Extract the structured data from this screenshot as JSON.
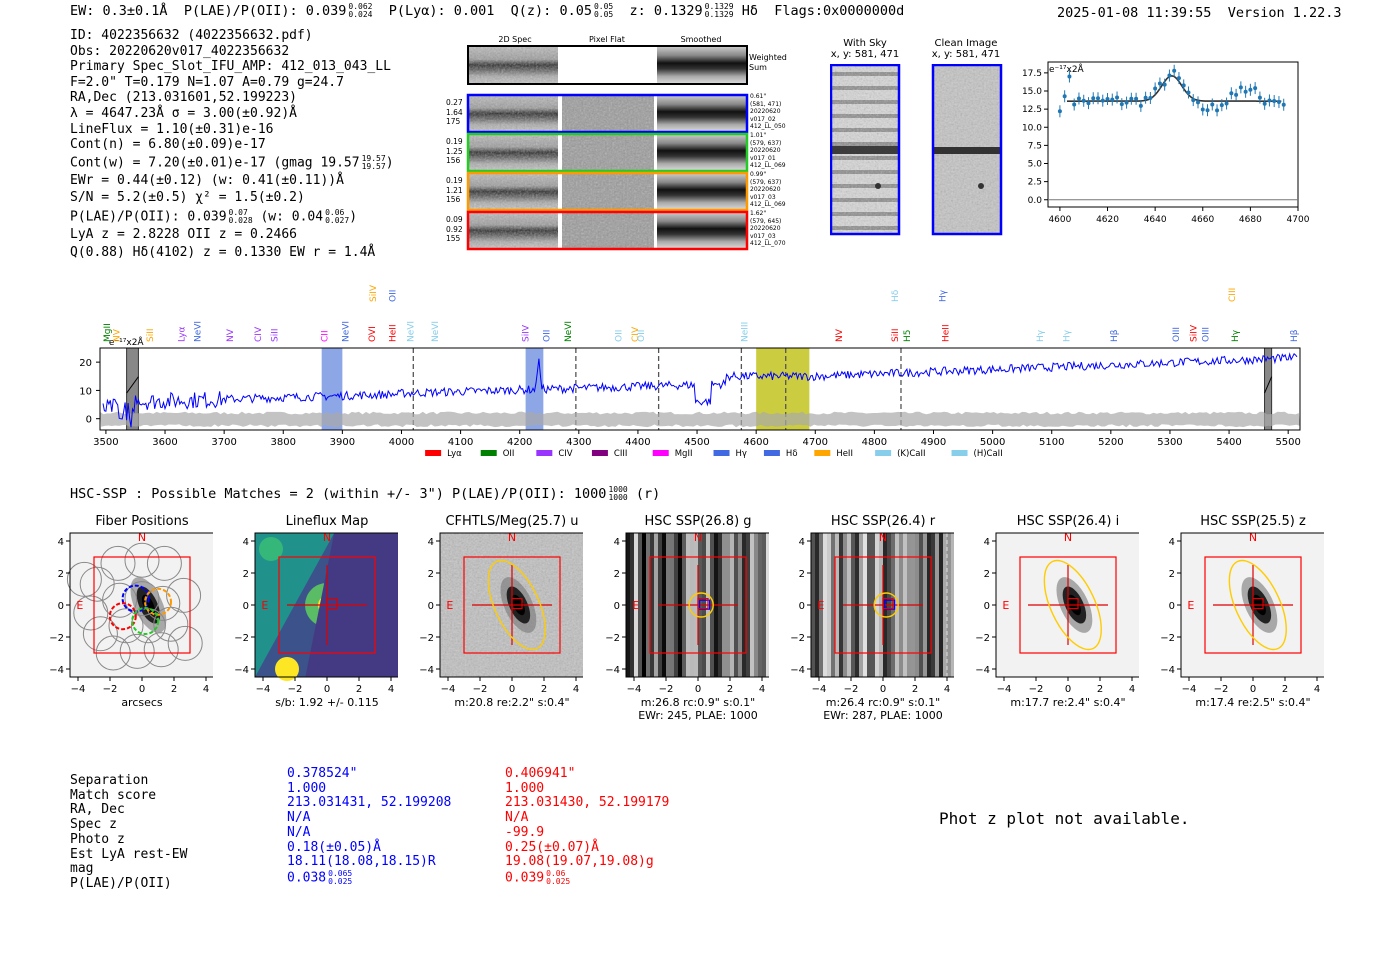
{
  "header": {
    "ew": "EW: 0.3±0.1Å",
    "plae_label": "P(LAE)/P(OII): 0.039",
    "plae_hi": "0.062",
    "plae_lo": "0.024",
    "plya": "P(Lyα): 0.001",
    "qz_label": "Q(z): 0.05",
    "qz_hi": "0.05",
    "qz_lo": "0.05",
    "z_label": "z: 0.1329",
    "z_hi": "0.1329",
    "z_lo": "0.1329",
    "line": "Hδ",
    "flags": "Flags:0x0000000d",
    "datetime": "2025-01-08 11:39:55",
    "version": "Version 1.22.3"
  },
  "info": {
    "id": "ID: 4022356632 (4022356632.pdf)",
    "obs": "Obs: 20220620v017_4022356632",
    "primary": "Primary Spec_Slot_IFU_AMP: 412_013_043_LL",
    "fit": "F=2.0\"  T=0.179  N=1.07  A=0.79  g=24.7",
    "radec": "RA,Dec (213.031601,52.199223)",
    "lambda": "λ = 4647.23Å  σ = 3.00(±0.92)Å",
    "lineflux": "LineFlux = 1.10(±0.31)e-16",
    "contn": "Cont(n) = 6.80(±0.09)e-17",
    "contw": "Cont(w) = 7.20(±0.01)e-17 (gmag 19.57",
    "contw_hi": "19.57",
    "contw_lo": "19.57",
    "ewr": "EWr = 0.44(±0.12) (w: 0.41(±0.11))Å",
    "sn": "S/N = 5.2(±0.5)  χ² = 1.5(±0.2)",
    "plae": "P(LAE)/P(OII): 0.039",
    "plae_hi": "0.07",
    "plae_lo": "0.028",
    "plae_w": "(w: 0.04",
    "plae_w_hi": "0.06",
    "plae_w_lo": "0.027",
    "lya": "LyA z = 2.8228  OII z = 0.2466",
    "q": "Q(0.88) Hδ(4102) z = 0.1330  EW r = 1.4Å"
  },
  "cutouts": {
    "headers": [
      "2D Spec",
      "Pixel Flat",
      "Smoothed"
    ],
    "weighted": "Weighted Sum",
    "rows": [
      {
        "left": [
          "0.27",
          "1.64",
          "175"
        ],
        "right": [
          "0.61\"",
          "(581, 471)",
          "20220620",
          "v017_02",
          "412_LL_050"
        ],
        "color": "#0000ff"
      },
      {
        "left": [
          "0.19",
          "1.25",
          "156"
        ],
        "right": [
          "1.01\"",
          "(579, 637)",
          "20220620",
          "v017_01",
          "412_LL_069"
        ],
        "color": "#22cc22"
      },
      {
        "left": [
          "0.19",
          "1.21",
          "156"
        ],
        "right": [
          "0.99\"",
          "(579, 637)",
          "20220620",
          "v017_03",
          "412_LL_069"
        ],
        "color": "#ff9900"
      },
      {
        "left": [
          "0.09",
          "0.92",
          "155"
        ],
        "right": [
          "1.62\"",
          "(579, 645)",
          "20220620",
          "v017_03",
          "412_LL_070"
        ],
        "color": "#ff0000"
      }
    ]
  },
  "sky": {
    "with_title": "With Sky",
    "with_coords": "x, y: 581, 471",
    "clean_title": "Clean Image",
    "clean_coords": "x, y: 581, 471"
  },
  "zoom_chart": {
    "unit": "e⁻¹⁷x2Å",
    "type": "scatter",
    "xlim": [
      4595,
      4700
    ],
    "ylim": [
      -1,
      19
    ],
    "xticks": [
      "4600",
      "4620",
      "4640",
      "4660",
      "4680",
      "4700"
    ],
    "yticks": [
      "0.0",
      "2.5",
      "5.0",
      "7.5",
      "10.0",
      "12.5",
      "15.0",
      "17.5"
    ]
  },
  "chart_data": {
    "type": "line",
    "unit": "e⁻¹⁷x2Å",
    "xlim": [
      3490,
      5520
    ],
    "ylim": [
      -4,
      25
    ],
    "xticks": [
      "3500",
      "3600",
      "3700",
      "3800",
      "3900",
      "4000",
      "4100",
      "4200",
      "4300",
      "4400",
      "4500",
      "4600",
      "4700",
      "4800",
      "4900",
      "5000",
      "5100",
      "5200",
      "5300",
      "5400",
      "5500"
    ],
    "yticks": [
      "0",
      "10",
      "20"
    ],
    "legend": [
      {
        "label": "Lyα",
        "color": "#ff0000"
      },
      {
        "label": "OII",
        "color": "#008000"
      },
      {
        "label": "CIV",
        "color": "#9933ff"
      },
      {
        "label": "CIII",
        "color": "#800080"
      },
      {
        "label": "MgII",
        "color": "#ff00ff"
      },
      {
        "label": "Hγ",
        "color": "#4169e1"
      },
      {
        "label": "Hδ",
        "color": "#4169e1"
      },
      {
        "label": "HeII",
        "color": "#ffa500"
      },
      {
        "label": "(K)CaII",
        "color": "#87ceeb"
      },
      {
        "label": "(H)CaII",
        "color": "#87ceeb"
      }
    ],
    "line_labels": [
      {
        "name": "MgII",
        "x": 3502,
        "row": 1,
        "color": "#008000"
      },
      {
        "name": "NV",
        "x": 3518,
        "row": 1,
        "color": "#ffa500"
      },
      {
        "name": "SiII",
        "x": 3575,
        "row": 1,
        "color": "#ffa500"
      },
      {
        "name": "Lyα",
        "x": 3628,
        "row": 1,
        "color": "#9933ff"
      },
      {
        "name": "NeVI",
        "x": 3655,
        "row": 1,
        "color": "#4169e1"
      },
      {
        "name": "NV",
        "x": 3710,
        "row": 1,
        "color": "#9933ff"
      },
      {
        "name": "CIV",
        "x": 3757,
        "row": 1,
        "color": "#9933ff"
      },
      {
        "name": "SiII",
        "x": 3785,
        "row": 1,
        "color": "#9933ff"
      },
      {
        "name": "CII",
        "x": 3870,
        "row": 1,
        "color": "#ff00ff"
      },
      {
        "name": "NeVI",
        "x": 3905,
        "row": 1,
        "color": "#4169e1"
      },
      {
        "name": "OVI",
        "x": 3950,
        "row": 1,
        "color": "#ff0000"
      },
      {
        "name": "SiIV",
        "x": 3952,
        "row": 0,
        "color": "#ffa500"
      },
      {
        "name": "HeII",
        "x": 3985,
        "row": 1,
        "color": "#ff0000"
      },
      {
        "name": "OII",
        "x": 3985,
        "row": 0,
        "color": "#4169e1"
      },
      {
        "name": "NeVI",
        "x": 4015,
        "row": 1,
        "color": "#87ceeb"
      },
      {
        "name": "NeVI",
        "x": 4057,
        "row": 1,
        "color": "#87ceeb"
      },
      {
        "name": "SiIV",
        "x": 4210,
        "row": 1,
        "color": "#9933ff"
      },
      {
        "name": "OII",
        "x": 4245,
        "row": 1,
        "color": "#4169e1"
      },
      {
        "name": "NeVI",
        "x": 4282,
        "row": 1,
        "color": "#008000"
      },
      {
        "name": "OII",
        "x": 4367,
        "row": 1,
        "color": "#87ceeb"
      },
      {
        "name": "CIV",
        "x": 4395,
        "row": 1,
        "color": "#ffa500"
      },
      {
        "name": "OII",
        "x": 4405,
        "row": 1,
        "color": "#87ceeb"
      },
      {
        "name": "NeIII",
        "x": 4580,
        "row": 1,
        "color": "#87ceeb"
      },
      {
        "name": "NV",
        "x": 4740,
        "row": 1,
        "color": "#ff0000"
      },
      {
        "name": "SiII",
        "x": 4835,
        "row": 1,
        "color": "#ff0000"
      },
      {
        "name": "Hδ",
        "x": 4835,
        "row": 0,
        "color": "#87ceeb"
      },
      {
        "name": "H5",
        "x": 4855,
        "row": 1,
        "color": "#008000"
      },
      {
        "name": "Hγ",
        "x": 4915,
        "row": 0,
        "color": "#4169e1"
      },
      {
        "name": "HeII",
        "x": 4920,
        "row": 1,
        "color": "#ff0000"
      },
      {
        "name": "Hγ",
        "x": 5080,
        "row": 1,
        "color": "#87ceeb"
      },
      {
        "name": "Hγ",
        "x": 5125,
        "row": 1,
        "color": "#87ceeb"
      },
      {
        "name": "Hβ",
        "x": 5205,
        "row": 1,
        "color": "#4169e1"
      },
      {
        "name": "OIII",
        "x": 5310,
        "row": 1,
        "color": "#4169e1"
      },
      {
        "name": "SiIV",
        "x": 5340,
        "row": 1,
        "color": "#ff0000"
      },
      {
        "name": "OIII",
        "x": 5360,
        "row": 1,
        "color": "#4169e1"
      },
      {
        "name": "CIII",
        "x": 5405,
        "row": 0,
        "color": "#ffa500"
      },
      {
        "name": "Hγ",
        "x": 5410,
        "row": 1,
        "color": "#008000"
      },
      {
        "name": "Hβ",
        "x": 5510,
        "row": 1,
        "color": "#4169e1"
      }
    ],
    "dashed_lines": [
      4020,
      4295,
      4435,
      4575,
      4650,
      4845
    ],
    "shaded_regions": [
      {
        "x0": 3865,
        "x1": 3900,
        "color": "#6688dd"
      },
      {
        "x0": 4210,
        "x1": 4240,
        "color": "#6688dd"
      },
      {
        "x0": 4600,
        "x1": 4690,
        "color": "#bbbb00"
      }
    ],
    "hatched_regions": [
      {
        "x0": 3535,
        "x1": 3555
      },
      {
        "x0": 5460,
        "x1": 5472
      }
    ]
  },
  "hsc": {
    "title": "HSC-SSP : Possible Matches = 2 (within +/- 3\")  P(LAE)/P(OII): 1000",
    "frac_hi": "1000",
    "frac_lo": "1000",
    "suffix": "(r)"
  },
  "panels": [
    {
      "title": "Fiber Positions",
      "caption": "arcsecs",
      "caption2": ""
    },
    {
      "title": "Lineflux Map",
      "caption": "s/b: 1.92 +/- 0.115",
      "caption2": ""
    },
    {
      "title": "CFHTLS/Meg(25.7) u",
      "caption": "m:20.8  re:2.2\"  s:0.4\"",
      "caption2": ""
    },
    {
      "title": "HSC SSP(26.8) g",
      "caption": "m:26.8 rc:0.9\"  s:0.1\"",
      "caption2": "EWr: 245, PLAE: 1000"
    },
    {
      "title": "HSC SSP(26.4) r",
      "caption": "m:26.4 rc:0.9\"  s:0.1\"",
      "caption2": "EWr: 287, PLAE: 1000"
    },
    {
      "title": "HSC SSP(26.4) i",
      "caption": "m:17.7  re:2.4\"  s:0.4\"",
      "caption2": ""
    },
    {
      "title": "HSC SSP(25.5) z",
      "caption": "m:17.4  re:2.5\"  s:0.4\"",
      "caption2": ""
    }
  ],
  "panel_axis": {
    "xticks": [
      "−4",
      "−2",
      "0",
      "2",
      "4"
    ],
    "yticks": [
      "4",
      "2",
      "0",
      "−2",
      "−4"
    ],
    "north": "N",
    "east": "E"
  },
  "table": {
    "labels": [
      "Separation",
      "Match score",
      "RA, Dec",
      "Spec z",
      "Photo z",
      "Est LyA rest-EW",
      "mag",
      "P(LAE)/P(OII)"
    ],
    "col1": [
      "0.378524\"",
      "1.000",
      "213.031431, 52.199208",
      "N/A",
      "N/A",
      "0.18(±0.05)Å",
      "18.11(18.08,18.15)R",
      "0.038"
    ],
    "col1_hi": "0.065",
    "col1_lo": "0.025",
    "col2": [
      "0.406941\"",
      "1.000",
      "213.031430, 52.199179",
      "N/A",
      "-99.9",
      "0.25(±0.07)Å",
      "19.08(19.07,19.08)g",
      "0.039"
    ],
    "col2_hi": "0.06",
    "col2_lo": "0.025",
    "photz_msg": "Phot z plot not available."
  }
}
